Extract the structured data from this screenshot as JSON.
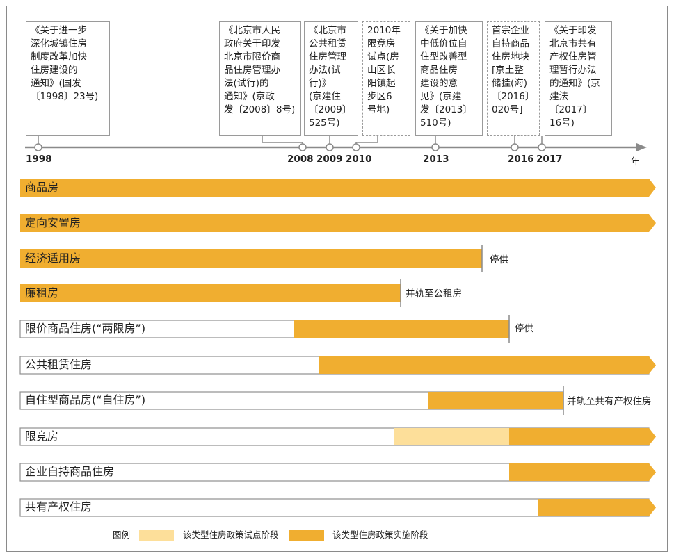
{
  "colors": {
    "implement": "#F0AE30",
    "pilot": "#FDDF9A",
    "outline": "#8f8f8f",
    "axis": "#8a8a8a"
  },
  "documents": [
    {
      "text": "《关于进一步\n深化城镇住房\n制度改革加快\n住房建设的\n通知》(国发\n〔1998〕23号)"
    },
    {
      "text": "《北京市人民\n政府关于印发\n北京市限价商\n品住房管理办\n法(试行)的\n通知》(京政\n发〔2008〕8号)"
    },
    {
      "text": "《北京市\n公共租赁\n住房管理\n办法(试\n行)》\n(京建住\n〔2009〕\n525号)"
    },
    {
      "text": "2010年\n限竞房\n试点(房\n山区长\n阳镇起\n步区6\n号地)"
    },
    {
      "text": "《关于加快\n中低价位自\n住型改善型\n商品住房\n建设的意\n见》(京建\n发〔2013〕\n510号)"
    },
    {
      "text": "首宗企业\n自持商品\n住房地块\n[京土整\n储挂(海)\n〔2016〕\n020号]"
    },
    {
      "text": "《关于印发\n北京市共有\n产权住房管\n理暂行办法\n的通知》(京\n建法〔2017〕\n16号)"
    }
  ],
  "timeline": {
    "years": [
      "1998",
      "2008",
      "2009",
      "2010",
      "2013",
      "2016",
      "2017"
    ],
    "unit": "年"
  },
  "rows": [
    {
      "label": "商品房",
      "note": ""
    },
    {
      "label": "定向安置房",
      "note": ""
    },
    {
      "label": "经济适用房",
      "note": "停供"
    },
    {
      "label": "廉租房",
      "note": "并轨至公租房"
    },
    {
      "label": "限价商品住房(“两限房”)",
      "note": "停供"
    },
    {
      "label": "公共租赁住房",
      "note": ""
    },
    {
      "label": "自住型商品房(“自住房”)",
      "note": "并轨至共有产权住房"
    },
    {
      "label": "限竞房",
      "note": ""
    },
    {
      "label": "企业自持商品住房",
      "note": ""
    },
    {
      "label": "共有产权住房",
      "note": ""
    }
  ],
  "legend": {
    "title": "图例",
    "pilot": "该类型住房政策试点阶段",
    "implement": "该类型住房政策实施阶段"
  }
}
